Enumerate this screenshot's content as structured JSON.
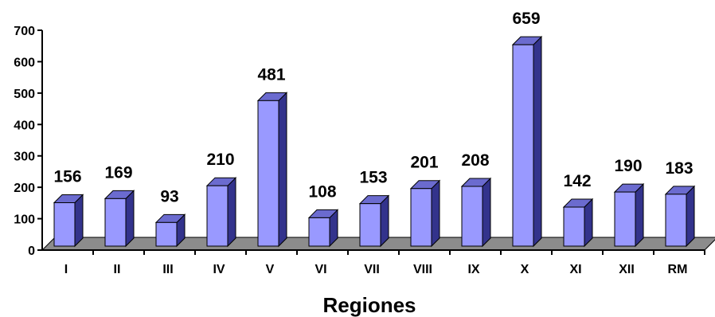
{
  "chart_data": {
    "type": "bar",
    "title": "",
    "xlabel": "Regiones",
    "ylabel": "",
    "categories": [
      "I",
      "II",
      "III",
      "IV",
      "V",
      "VI",
      "VII",
      "VIII",
      "IX",
      "X",
      "XI",
      "XII",
      "RM"
    ],
    "values": [
      156,
      169,
      93,
      210,
      481,
      108,
      153,
      201,
      208,
      659,
      142,
      190,
      183
    ],
    "ylim": [
      0,
      700
    ],
    "yticks": [
      "0",
      "100",
      "200",
      "300",
      "400",
      "500",
      "600",
      "700"
    ],
    "grid": false,
    "legend": "none",
    "colors": {
      "bar_front": "#9999ff",
      "bar_side": "#33338c",
      "bar_top": "#6b6bcf",
      "floor": "#8c8c8c",
      "axis": "#000000"
    }
  }
}
